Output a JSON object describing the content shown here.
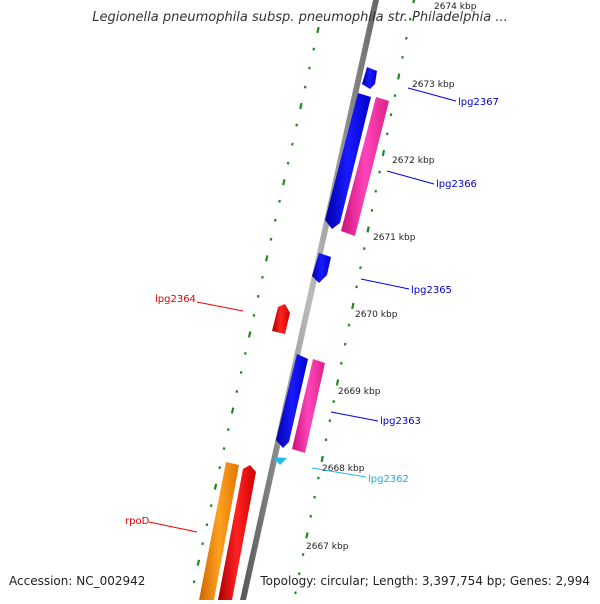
{
  "title": "Legionella pneumophila subsp. pneumophila str. Philadelphia ...",
  "footer": {
    "accession": "Accession: NC_002942",
    "stats": "Topology: circular; Length: 3,397,754 bp; Genes: 2,994"
  },
  "scale": {
    "unit": "kbp",
    "ticks": [
      "2674 kbp",
      "2673 kbp",
      "2672 kbp",
      "2671 kbp",
      "2670 kbp",
      "2669 kbp",
      "2668 kbp",
      "2667 kbp"
    ]
  },
  "genes": {
    "lpg2367": "lpg2367",
    "lpg2366": "lpg2366",
    "lpg2365": "lpg2365",
    "lpg2364": "lpg2364",
    "lpg2363": "lpg2363",
    "lpg2362": "lpg2362",
    "rpoD": "rpoD"
  },
  "colors": {
    "forward_cds": "#0000ee",
    "forward_rna": "#ff33aa",
    "reverse_cds": "#ee0000",
    "reverse_rna": "#ff8800",
    "small_feature": "#22bbee",
    "ticks": "#228822",
    "backbone": "#888888"
  }
}
